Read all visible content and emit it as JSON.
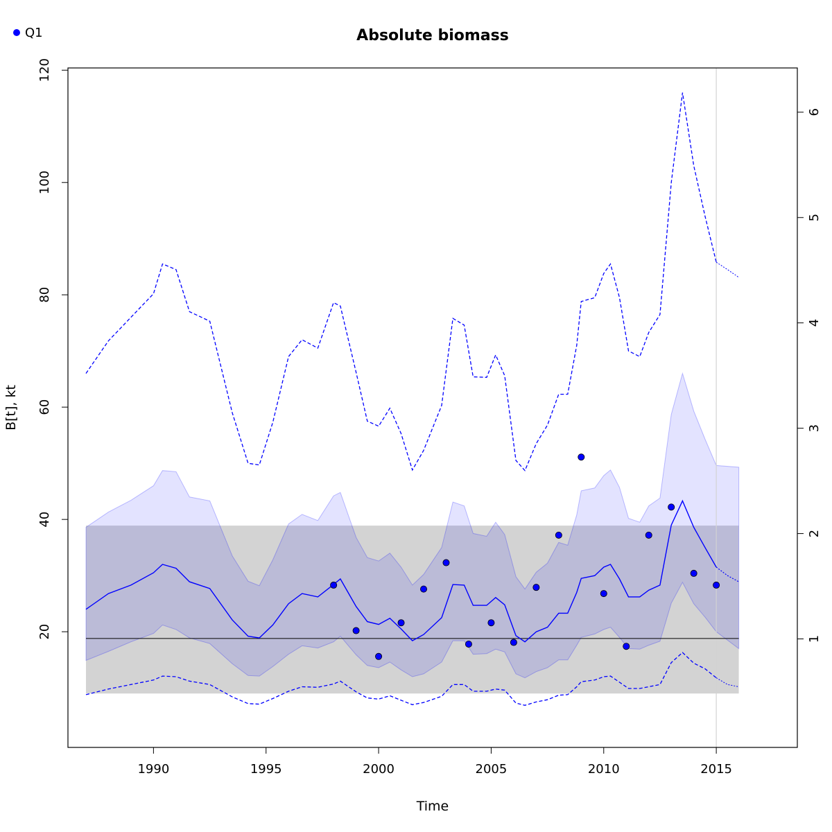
{
  "chart_data": {
    "type": "line",
    "title": "Absolute biomass",
    "xlabel": "Time",
    "ylabel": "B[t], kt",
    "xlim": [
      1986.2,
      2018.6
    ],
    "ylim": [
      -0.6,
      120.4
    ],
    "y2lim": [
      -0.03,
      6.42
    ],
    "x_ticks": [
      1990,
      1995,
      2000,
      2005,
      2010,
      2015
    ],
    "y_ticks": [
      20,
      40,
      60,
      80,
      100,
      120
    ],
    "y2_ticks": [
      1,
      2,
      3,
      4,
      5,
      6
    ],
    "legend": {
      "position": "top-left",
      "entries": [
        {
          "label": "Q1",
          "color": "#0000ff"
        }
      ]
    },
    "reference_line": {
      "y": 18.8,
      "color": "#000000"
    },
    "reference_band": {
      "from": 9.0,
      "to": 38.9,
      "x_from": 1987,
      "x_to": 2016,
      "color": "#d3d3d3"
    },
    "vertical_line": {
      "x": 2015,
      "color": "#d3d3d3"
    },
    "colors": {
      "series": "#0000ff",
      "inner_ci_fill": "#0000ff",
      "outer_ci_fill": "#0000ff",
      "background": "#ffffff"
    },
    "estimate": {
      "x": [
        1987.0,
        1988.0,
        1989.0,
        1990.0,
        1990.4,
        1991.0,
        1991.6,
        1992.5,
        1993.5,
        1994.2,
        1994.7,
        1995.3,
        1996.0,
        1996.6,
        1997.3,
        1998.0,
        1998.3,
        1999.0,
        1999.5,
        2000.0,
        2000.5,
        2001.0,
        2001.5,
        2002.0,
        2002.8,
        2003.3,
        2003.8,
        2004.2,
        2004.8,
        2005.2,
        2005.6,
        2006.1,
        2006.5,
        2007.0,
        2007.5,
        2008.0,
        2008.4,
        2008.8,
        2009.0,
        2009.6,
        2010.0,
        2010.3,
        2010.7,
        2011.1,
        2011.6,
        2012.0,
        2012.5,
        2013.0,
        2013.5,
        2014.0,
        2014.5,
        2015.0
      ],
      "y": [
        24.0,
        26.8,
        28.3,
        30.5,
        32.0,
        31.3,
        28.9,
        27.7,
        22.1,
        19.2,
        18.9,
        21.2,
        25.0,
        26.8,
        26.2,
        28.4,
        29.4,
        24.5,
        21.8,
        21.3,
        22.4,
        20.5,
        18.4,
        19.5,
        22.5,
        28.4,
        28.3,
        24.7,
        24.7,
        26.1,
        24.8,
        19.3,
        18.2,
        20.0,
        20.8,
        23.3,
        23.3,
        27.0,
        29.5,
        30.0,
        31.5,
        32.0,
        29.4,
        26.2,
        26.2,
        27.4,
        28.3,
        39.0,
        43.3,
        38.6,
        35.0,
        31.5
      ]
    },
    "forecast": {
      "x": [
        2015.0,
        2015.5,
        2016.0
      ],
      "y": [
        31.5,
        30.0,
        28.9
      ]
    },
    "inner_ci": {
      "x": [
        1987.0,
        1988.0,
        1989.0,
        1990.0,
        1990.4,
        1991.0,
        1991.6,
        1992.5,
        1993.5,
        1994.2,
        1994.7,
        1995.3,
        1996.0,
        1996.6,
        1997.3,
        1998.0,
        1998.3,
        1999.0,
        1999.5,
        2000.0,
        2000.5,
        2001.0,
        2001.5,
        2002.0,
        2002.8,
        2003.3,
        2003.8,
        2004.2,
        2004.8,
        2005.2,
        2005.6,
        2006.1,
        2006.5,
        2007.0,
        2007.5,
        2008.0,
        2008.4,
        2008.8,
        2009.0,
        2009.6,
        2010.0,
        2010.3,
        2010.7,
        2011.1,
        2011.6,
        2012.0,
        2012.5,
        2013.0,
        2013.5,
        2014.0,
        2014.5,
        2015.0,
        2016.0
      ],
      "upper": [
        38.6,
        41.3,
        43.4,
        46.0,
        48.7,
        48.5,
        44.0,
        43.3,
        33.5,
        29.0,
        28.2,
        32.8,
        39.2,
        40.9,
        39.8,
        44.2,
        44.8,
        36.8,
        33.2,
        32.6,
        34.0,
        31.5,
        28.3,
        30.2,
        35.0,
        43.1,
        42.4,
        37.5,
        37.0,
        39.5,
        37.3,
        29.8,
        27.6,
        30.6,
        32.2,
        35.9,
        35.4,
        40.8,
        45.1,
        45.6,
        47.8,
        48.8,
        45.7,
        40.2,
        39.5,
        42.4,
        43.8,
        58.7,
        66.0,
        59.3,
        54.3,
        49.6,
        49.3
      ],
      "lower": [
        14.9,
        16.5,
        18.2,
        19.7,
        21.2,
        20.4,
        18.9,
        17.9,
        14.3,
        12.2,
        12.1,
        13.8,
        16.0,
        17.5,
        17.1,
        18.2,
        19.2,
        15.9,
        14.0,
        13.6,
        14.6,
        13.2,
        12.0,
        12.5,
        14.6,
        18.4,
        18.4,
        16.0,
        16.1,
        16.9,
        16.4,
        12.5,
        11.8,
        12.9,
        13.6,
        15.0,
        15.0,
        17.6,
        19.0,
        19.6,
        20.4,
        20.8,
        19.0,
        17.0,
        16.9,
        17.6,
        18.3,
        25.1,
        28.8,
        25.0,
        22.6,
        20.0,
        17.0
      ]
    },
    "outer_ci": {
      "x": [
        1987.0,
        1988.0,
        1989.0,
        1990.0,
        1990.4,
        1991.0,
        1991.6,
        1992.5,
        1993.5,
        1994.2,
        1994.7,
        1995.3,
        1996.0,
        1996.6,
        1997.3,
        1998.0,
        1998.3,
        1999.0,
        1999.5,
        2000.0,
        2000.5,
        2001.0,
        2001.5,
        2002.0,
        2002.8,
        2003.3,
        2003.8,
        2004.2,
        2004.8,
        2005.2,
        2005.6,
        2006.1,
        2006.5,
        2007.0,
        2007.5,
        2008.0,
        2008.4,
        2008.8,
        2009.0,
        2009.6,
        2010.0,
        2010.3,
        2010.7,
        2011.1,
        2011.6,
        2012.0,
        2012.5,
        2013.0,
        2013.5,
        2014.0,
        2014.5,
        2015.0
      ],
      "upper": [
        66.0,
        71.8,
        76.0,
        80.2,
        85.5,
        84.5,
        77.0,
        75.3,
        59.0,
        50.0,
        49.7,
        57.3,
        69.0,
        72.0,
        70.5,
        78.6,
        78.0,
        66.2,
        57.5,
        56.6,
        59.8,
        55.3,
        48.8,
        52.3,
        60.3,
        75.8,
        74.6,
        65.4,
        65.3,
        69.3,
        65.6,
        50.5,
        48.7,
        53.5,
        56.8,
        62.3,
        62.3,
        71.0,
        78.8,
        79.5,
        83.8,
        85.5,
        79.5,
        70.0,
        69.0,
        73.3,
        76.5,
        100.0,
        116.0,
        103.0,
        94.0,
        85.8
      ],
      "lower": [
        8.8,
        9.8,
        10.6,
        11.4,
        12.1,
        12.0,
        11.2,
        10.6,
        8.4,
        7.2,
        7.1,
        8.1,
        9.4,
        10.2,
        10.1,
        10.7,
        11.2,
        9.3,
        8.2,
        8.0,
        8.6,
        7.8,
        7.0,
        7.4,
        8.5,
        10.6,
        10.6,
        9.4,
        9.4,
        9.8,
        9.6,
        7.3,
        6.9,
        7.5,
        7.9,
        8.7,
        8.8,
        10.2,
        11.1,
        11.4,
        12.0,
        12.1,
        11.0,
        9.9,
        9.9,
        10.2,
        10.6,
        14.5,
        16.3,
        14.4,
        13.4,
        11.8
      ]
    },
    "outer_forecast": {
      "x": [
        2015.0,
        2015.5,
        2016.0
      ],
      "upper": [
        85.8,
        84.5,
        83.1
      ],
      "lower": [
        11.8,
        10.6,
        10.2
      ]
    },
    "observations": {
      "name": "Q1",
      "x": [
        1998,
        1999,
        2000,
        2001,
        2002,
        2003,
        2004,
        2005,
        2006,
        2007,
        2008,
        2009,
        2010,
        2011,
        2012,
        2013,
        2014,
        2015
      ],
      "y": [
        28.3,
        20.2,
        15.6,
        21.6,
        27.6,
        32.3,
        17.8,
        21.6,
        18.1,
        27.9,
        37.2,
        51.1,
        26.8,
        17.4,
        37.2,
        42.2,
        30.4,
        28.3
      ]
    }
  }
}
